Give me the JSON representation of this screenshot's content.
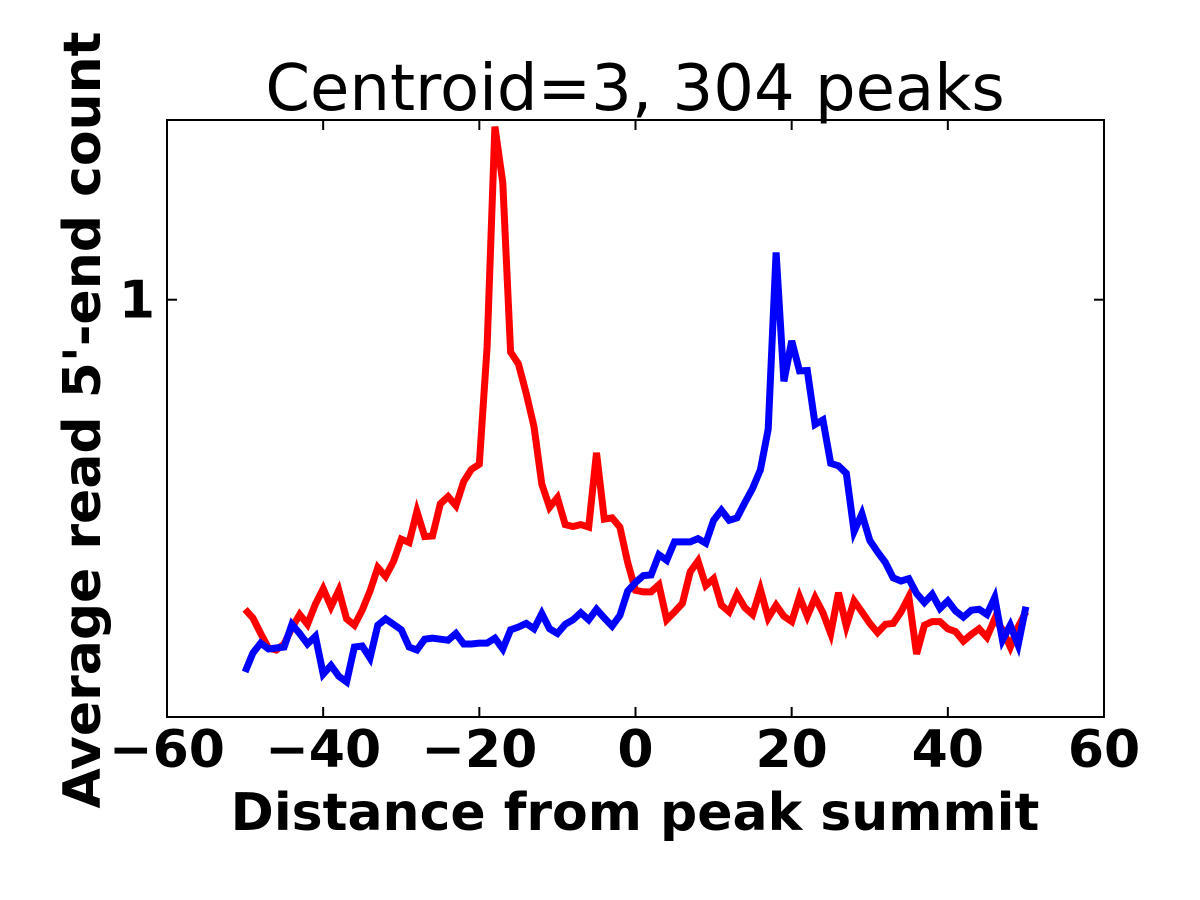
{
  "chart_data": {
    "type": "line",
    "title": "Centroid=3, 304 peaks",
    "xlabel": "Distance from peak summit",
    "ylabel": "Average read 5'-end count",
    "xlim": [
      -60,
      60
    ],
    "ylim": [
      0.2,
      2.0
    ],
    "xticks": [
      -60,
      -40,
      -20,
      0,
      20,
      40,
      60
    ],
    "xtick_labels": [
      "−60",
      "−40",
      "−20",
      "0",
      "20",
      "40",
      "60"
    ],
    "yticks": [
      1
    ],
    "ytick_labels": [
      "1"
    ],
    "grid": false,
    "legend": "none",
    "x": [
      -50,
      -49,
      -48,
      -47,
      -46,
      -45,
      -44,
      -43,
      -42,
      -41,
      -40,
      -39,
      -38,
      -37,
      -36,
      -35,
      -34,
      -33,
      -32,
      -31,
      -30,
      -29,
      -28,
      -27,
      -26,
      -25,
      -24,
      -23,
      -22,
      -21,
      -20,
      -19,
      -18,
      -17,
      -16,
      -15,
      -14,
      -13,
      -12,
      -11,
      -10,
      -9,
      -8,
      -7,
      -6,
      -5,
      -4,
      -3,
      -2,
      -1,
      0,
      1,
      2,
      3,
      4,
      5,
      6,
      7,
      8,
      9,
      10,
      11,
      12,
      13,
      14,
      15,
      16,
      17,
      18,
      19,
      20,
      21,
      22,
      23,
      24,
      25,
      26,
      27,
      28,
      29,
      30,
      31,
      32,
      33,
      34,
      35,
      36,
      37,
      38,
      39,
      40,
      41,
      42,
      43,
      44,
      45,
      46,
      47,
      48,
      49,
      50
    ],
    "series": [
      {
        "color": "#ff0000",
        "values": [
          0.303,
          0.293,
          0.276,
          0.261,
          0.259,
          0.265,
          0.282,
          0.297,
          0.286,
          0.309,
          0.328,
          0.306,
          0.326,
          0.292,
          0.285,
          0.302,
          0.325,
          0.356,
          0.344,
          0.364,
          0.397,
          0.392,
          0.442,
          0.401,
          0.402,
          0.455,
          0.468,
          0.452,
          0.496,
          0.52,
          0.53,
          0.834,
          1.95,
          1.57,
          0.817,
          0.781,
          0.697,
          0.613,
          0.491,
          0.449,
          0.466,
          0.42,
          0.417,
          0.42,
          0.416,
          0.554,
          0.429,
          0.431,
          0.416,
          0.363,
          0.326,
          0.324,
          0.324,
          0.333,
          0.291,
          0.3,
          0.31,
          0.35,
          0.365,
          0.332,
          0.341,
          0.308,
          0.3,
          0.321,
          0.305,
          0.297,
          0.327,
          0.293,
          0.308,
          0.295,
          0.289,
          0.318,
          0.295,
          0.317,
          0.299,
          0.276,
          0.323,
          0.284,
          0.313,
          0.3,
          0.287,
          0.277,
          0.286,
          0.287,
          0.3,
          0.318,
          0.255,
          0.285,
          0.289,
          0.289,
          0.281,
          0.278,
          0.268,
          0.275,
          0.281,
          0.272,
          0.292,
          0.28,
          0.262,
          0.283,
          0.3
        ]
      },
      {
        "color": "#0000ff",
        "values": [
          0.238,
          0.256,
          0.266,
          0.26,
          0.261,
          0.262,
          0.286,
          0.276,
          0.265,
          0.273,
          0.236,
          0.244,
          0.234,
          0.229,
          0.262,
          0.263,
          0.251,
          0.285,
          0.292,
          0.286,
          0.28,
          0.262,
          0.259,
          0.27,
          0.271,
          0.27,
          0.269,
          0.276,
          0.265,
          0.265,
          0.266,
          0.266,
          0.271,
          0.26,
          0.28,
          0.283,
          0.287,
          0.281,
          0.298,
          0.281,
          0.276,
          0.286,
          0.291,
          0.299,
          0.291,
          0.303,
          0.293,
          0.284,
          0.296,
          0.325,
          0.336,
          0.345,
          0.346,
          0.374,
          0.366,
          0.393,
          0.393,
          0.393,
          0.398,
          0.391,
          0.427,
          0.444,
          0.427,
          0.431,
          0.457,
          0.483,
          0.519,
          0.607,
          1.2,
          0.73,
          0.853,
          0.76,
          0.761,
          0.618,
          0.629,
          0.532,
          0.527,
          0.512,
          0.409,
          0.438,
          0.395,
          0.378,
          0.363,
          0.342,
          0.338,
          0.341,
          0.322,
          0.311,
          0.321,
          0.304,
          0.313,
          0.301,
          0.294,
          0.302,
          0.303,
          0.297,
          0.317,
          0.269,
          0.285,
          0.264,
          0.306
        ]
      }
    ]
  }
}
